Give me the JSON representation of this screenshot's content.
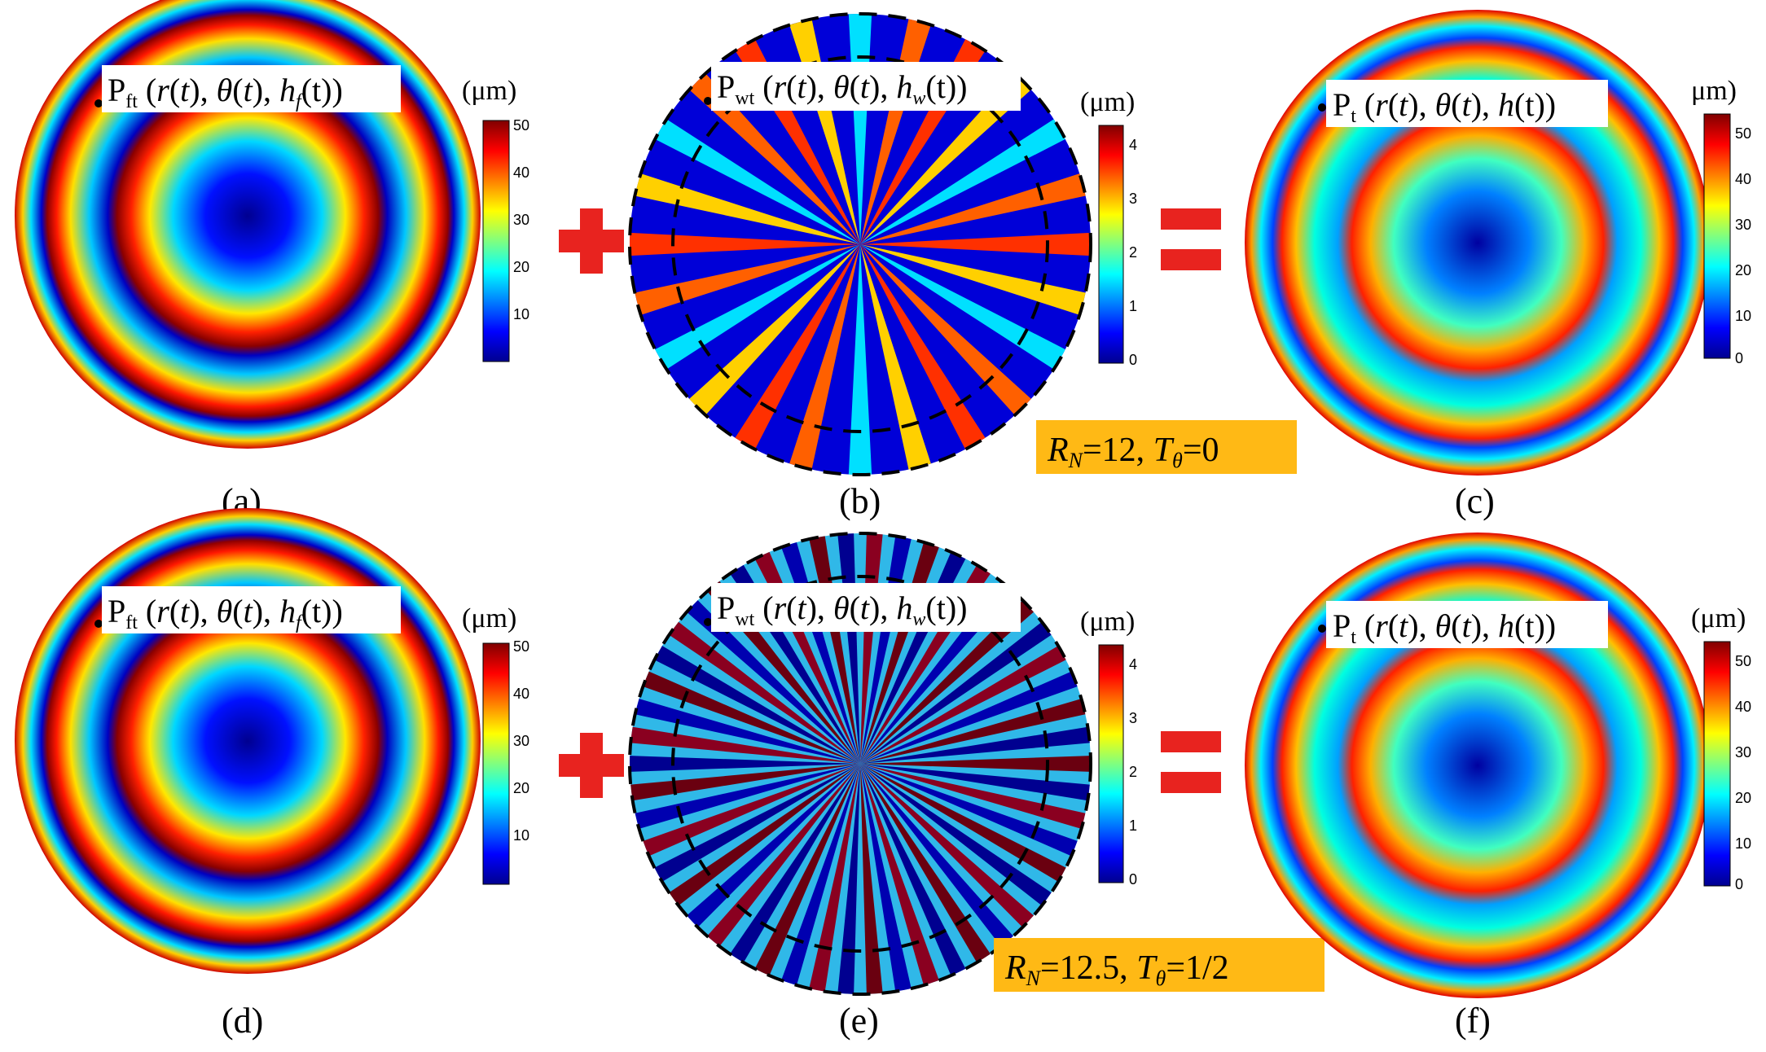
{
  "panels": [
    {
      "id": "a",
      "caption": "(a)",
      "label_main": "P",
      "label_sub": "ft",
      "label_h": "h",
      "label_hsub": "f",
      "label_harg": "(t))",
      "colorbar": {
        "unit": "(μm)",
        "ticks": [
          "50",
          "40",
          "30",
          "20",
          "10"
        ]
      }
    },
    {
      "id": "b",
      "caption": "(b)",
      "label_main": "P",
      "label_sub": "wt",
      "label_h": "h",
      "label_hsub": "w",
      "label_harg": "(t))",
      "colorbar": {
        "unit": "(μm)",
        "ticks": [
          "4",
          "3",
          "2",
          "1",
          "0"
        ]
      }
    },
    {
      "id": "c",
      "caption": "(c)",
      "label_main": "P",
      "label_sub": "t",
      "label_h": "h",
      "label_hsub": "",
      "label_harg": "(t))",
      "colorbar": {
        "unit": "μm)",
        "ticks": [
          "50",
          "40",
          "30",
          "20",
          "10",
          "0"
        ]
      }
    },
    {
      "id": "d",
      "caption": "(d)",
      "label_main": "P",
      "label_sub": "ft",
      "label_h": "h",
      "label_hsub": "f",
      "label_harg": "(t))",
      "colorbar": {
        "unit": "(μm)",
        "ticks": [
          "50",
          "40",
          "30",
          "20",
          "10"
        ]
      }
    },
    {
      "id": "e",
      "caption": "(e)",
      "label_main": "P",
      "label_sub": "wt",
      "label_h": "h",
      "label_hsub": "w",
      "label_harg": "(t))",
      "colorbar": {
        "unit": "(μm)",
        "ticks": [
          "4",
          "3",
          "2",
          "1",
          "0"
        ]
      }
    },
    {
      "id": "f",
      "caption": "(f)",
      "label_main": "P",
      "label_sub": "t",
      "label_h": "h",
      "label_hsub": "",
      "label_harg": "(t))",
      "colorbar": {
        "unit": "(μm)",
        "ticks": [
          "50",
          "40",
          "30",
          "20",
          "10",
          "0"
        ]
      }
    }
  ],
  "label_args": {
    "r": "r",
    "theta": "θ",
    "t": "t"
  },
  "operators": {
    "plus": "+",
    "equals": "="
  },
  "params": [
    {
      "rn_sym": "R",
      "rn_sub": "N",
      "rn_val": "=12, ",
      "t_sym": "T",
      "t_sub": "θ",
      "t_val": "=0"
    },
    {
      "rn_sym": "R",
      "rn_sub": "N",
      "rn_val": "=12.5, ",
      "t_sym": "T",
      "t_sub": "θ",
      "t_val": "=1/2"
    }
  ],
  "colors": {
    "param_box": "#FFB915",
    "operator": "#E8231F"
  }
}
